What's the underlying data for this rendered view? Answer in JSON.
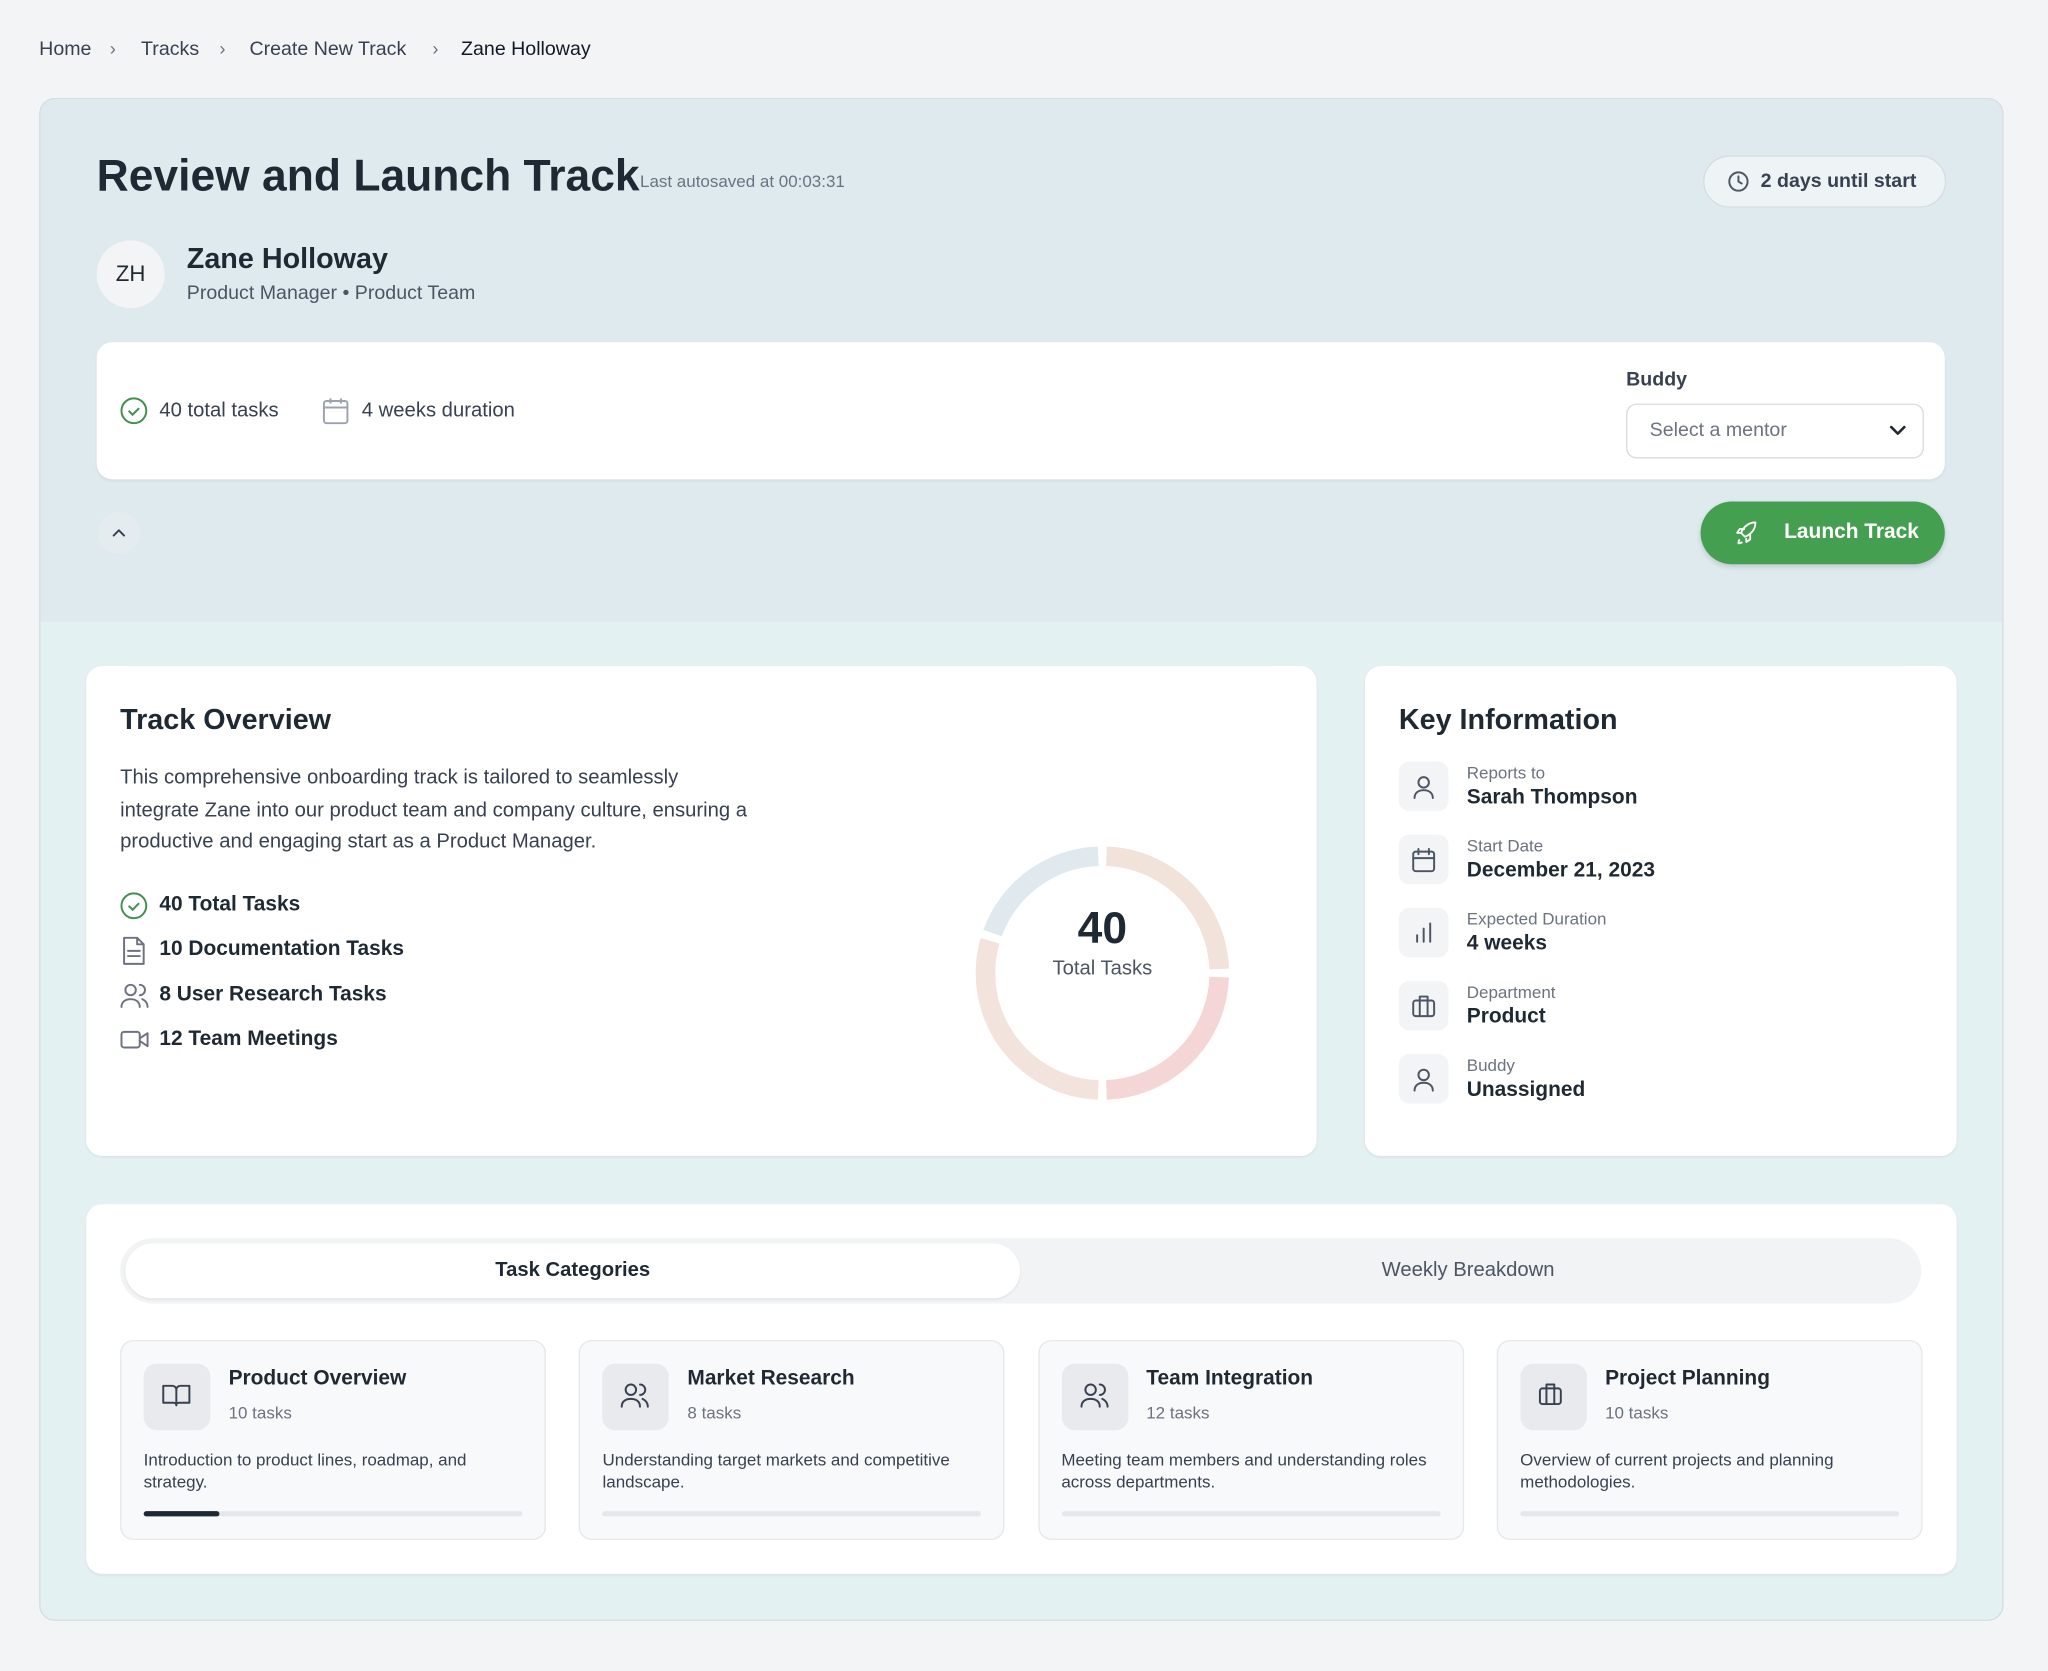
{
  "breadcrumb": [
    "Home",
    "Tracks",
    "Create New Track",
    "Zane Holloway"
  ],
  "header": {
    "title": "Review and Launch Track",
    "autosave": "Last autosaved at 00:03:31",
    "countdown": "2 days until start"
  },
  "employee": {
    "initials": "ZH",
    "name": "Zane Holloway",
    "role": "Product Manager • Product Team"
  },
  "summary": {
    "total_tasks": "40 total tasks",
    "duration": "4 weeks duration",
    "buddy_label": "Buddy",
    "buddy_placeholder": "Select a mentor"
  },
  "launch_button": "Launch Track",
  "overview": {
    "title": "Track Overview",
    "description": "This comprehensive onboarding track is tailored to seamlessly integrate Zane into our product team and company culture, ensuring a productive and engaging start as a Product Manager.",
    "stats": [
      "40 Total Tasks",
      "10 Documentation Tasks",
      "8 User Research Tasks",
      "12 Team Meetings"
    ],
    "donut": {
      "total": 40,
      "label": "Total Tasks",
      "segments": [
        {
          "value": 10,
          "color": "#f1e2da"
        },
        {
          "value": 10,
          "color": "#f5d6d6"
        },
        {
          "value": 12,
          "color": "#f2e4dd"
        },
        {
          "value": 8,
          "color": "#dfe9ee"
        }
      ]
    }
  },
  "key_info": {
    "title": "Key Information",
    "items": [
      {
        "label": "Reports to",
        "value": "Sarah Thompson"
      },
      {
        "label": "Start Date",
        "value": "December 21, 2023"
      },
      {
        "label": "Expected Duration",
        "value": "4 weeks"
      },
      {
        "label": "Department",
        "value": "Product"
      },
      {
        "label": "Buddy",
        "value": "Unassigned"
      }
    ]
  },
  "tabs": [
    "Task Categories",
    "Weekly Breakdown"
  ],
  "categories": [
    {
      "name": "Product Overview",
      "tasks": "10 tasks",
      "description": "Introduction to product lines, roadmap, and strategy.",
      "progress": 20
    },
    {
      "name": "Market Research",
      "tasks": "8 tasks",
      "description": "Understanding target markets and competitive landscape.",
      "progress": 0
    },
    {
      "name": "Team Integration",
      "tasks": "12 tasks",
      "description": "Meeting team members and understanding roles across departments.",
      "progress": 0
    },
    {
      "name": "Project Planning",
      "tasks": "10 tasks",
      "description": "Overview of current projects and planning methodologies.",
      "progress": 0
    }
  ]
}
